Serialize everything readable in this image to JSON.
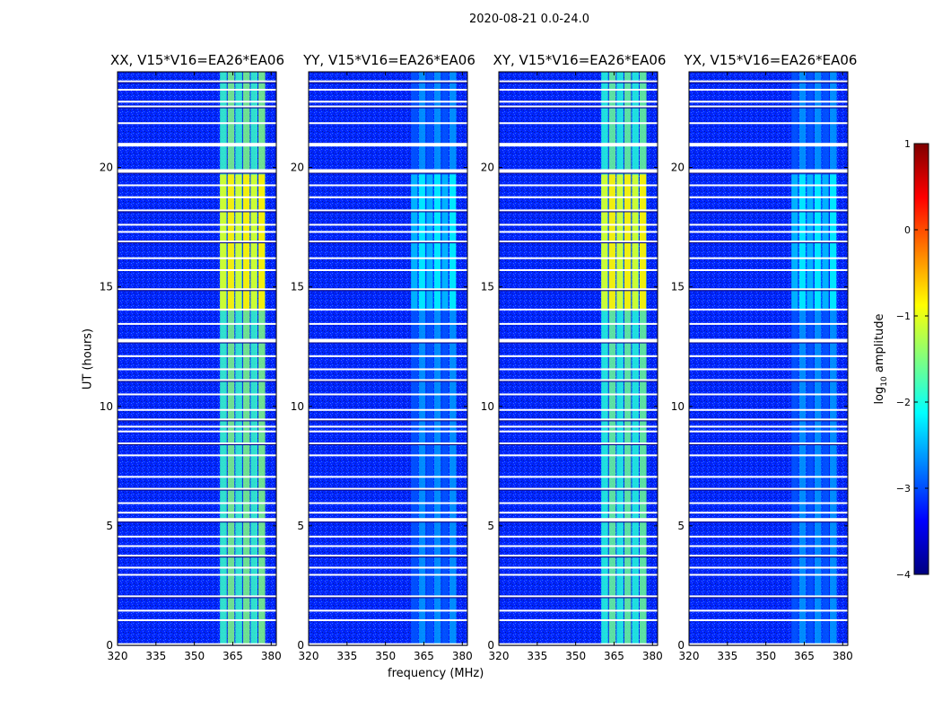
{
  "chart_data": {
    "type": "heatmap",
    "suptitle": "2020-08-21 0.0-24.0",
    "xlabel": "frequency (MHz)",
    "ylabel": "UT (hours)",
    "xlim": [
      320,
      382
    ],
    "ylim": [
      0,
      24
    ],
    "xticks": [
      320,
      335,
      350,
      365,
      380
    ],
    "yticks": [
      0,
      5,
      10,
      15,
      20
    ],
    "panels": [
      {
        "title": "XX, V15*V16=EA26*EA06",
        "band_level": -1.5,
        "bright_level": -0.8
      },
      {
        "title": "YY, V15*V16=EA26*EA06",
        "band_level": -2.6,
        "bright_level": -2.2
      },
      {
        "title": "XY, V15*V16=EA26*EA06",
        "band_level": -1.6,
        "bright_level": -0.8
      },
      {
        "title": "YX, V15*V16=EA26*EA06",
        "band_level": -2.6,
        "bright_level": -2.2
      }
    ],
    "background_level": -3.2,
    "band_range_mhz": [
      360,
      378
    ],
    "bright_range_hours": [
      14.0,
      19.7
    ],
    "flagged_hours": [
      0.05,
      1.05,
      1.45,
      2.05,
      2.95,
      3.25,
      3.75,
      4.15,
      4.55,
      5.25,
      5.55,
      5.95,
      6.55,
      7.05,
      7.95,
      8.45,
      8.95,
      9.15,
      9.45,
      9.85,
      10.5,
      11.1,
      11.55,
      12.1,
      12.75,
      13.45,
      14.05,
      14.9,
      15.7,
      16.2,
      16.9,
      17.3,
      17.6,
      18.2,
      18.75,
      19.25,
      19.85,
      20.95,
      21.85,
      22.55,
      22.75,
      23.25,
      23.6
    ],
    "colorbar": {
      "label": "log",
      "label_sub": "10",
      "label_rest": " amplitude",
      "range": [
        -4,
        1
      ],
      "ticks": [
        "1",
        "0",
        "−1",
        "−2",
        "−3",
        "−4"
      ],
      "colormap": "jet"
    }
  }
}
